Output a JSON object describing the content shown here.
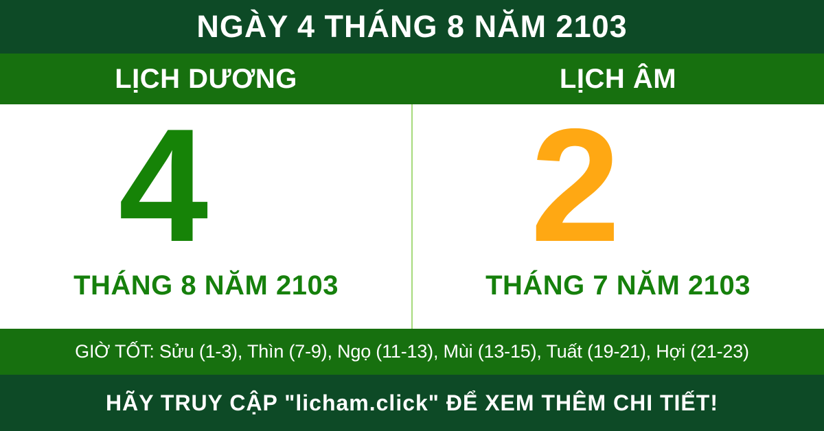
{
  "colors": {
    "banner_dark_green": "#0d4a26",
    "header_green": "#17700f",
    "solar_day_green": "#168307",
    "lunar_day_orange": "#ffa813",
    "month_label_green": "#16800c",
    "divider_light_green": "#a6da7c",
    "panel_white": "#ffffff",
    "text_white": "#ffffff"
  },
  "title": {
    "text": "NGÀY 4 THÁNG 8 NĂM 2103"
  },
  "columns": {
    "solar": {
      "header": "LỊCH DƯƠNG",
      "day": "4",
      "month_year": "THÁNG 8 NĂM 2103"
    },
    "lunar": {
      "header": "LỊCH ÂM",
      "day": "2",
      "month_year": "THÁNG 7 NĂM 2103"
    }
  },
  "good_hours": {
    "text": "GIỜ TỐT: Sửu (1-3), Thìn (7-9), Ngọ (11-13), Mùi (13-15), Tuất (19-21), Hợi (21-23)"
  },
  "footer": {
    "text": "HÃY TRUY CẬP \"licham.click\" ĐỂ XEM THÊM CHI TIẾT!"
  }
}
